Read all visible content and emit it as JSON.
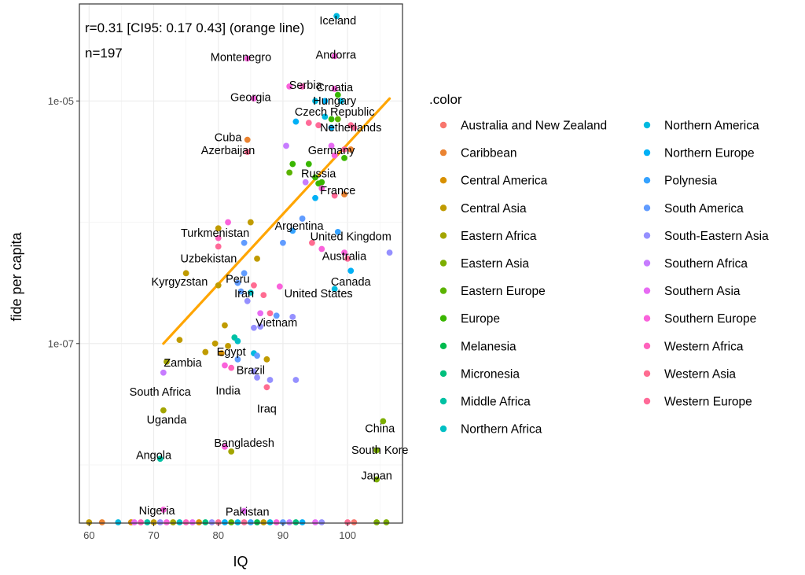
{
  "chart_data": {
    "type": "scatter",
    "annotation_lines": [
      "r=0.31 [CI95: 0.17 0.43] (orange line)",
      "n=197"
    ],
    "xlabel": "IQ",
    "ylabel": "fide per capita",
    "x_ticks": [
      "60",
      "70",
      "80",
      "90",
      "100"
    ],
    "y_ticks": [
      "1e-05",
      "1e-07"
    ],
    "xlim": [
      58.5,
      108.5
    ],
    "y_scale": "log10",
    "ylog_lim": [
      -8.48,
      -4.2
    ],
    "grid": true,
    "legend_title": ".color",
    "legend_position": "right",
    "regions": [
      {
        "name": "Australia and New Zealand",
        "color": "#F8766D"
      },
      {
        "name": "Caribbean",
        "color": "#EA8331"
      },
      {
        "name": "Central America",
        "color": "#D89000"
      },
      {
        "name": "Central Asia",
        "color": "#C09B00"
      },
      {
        "name": "Eastern Africa",
        "color": "#A3A500"
      },
      {
        "name": "Eastern Asia",
        "color": "#7CAE00"
      },
      {
        "name": "Eastern Europe",
        "color": "#5BB300"
      },
      {
        "name": "Europe",
        "color": "#39B600"
      },
      {
        "name": "Melanesia",
        "color": "#00BB4E"
      },
      {
        "name": "Micronesia",
        "color": "#00BF7D"
      },
      {
        "name": "Middle Africa",
        "color": "#00C1A3"
      },
      {
        "name": "Northern Africa",
        "color": "#00BFC4"
      },
      {
        "name": "Northern America",
        "color": "#00BAE0"
      },
      {
        "name": "Northern Europe",
        "color": "#00B0F6"
      },
      {
        "name": "Polynesia",
        "color": "#35A2FF"
      },
      {
        "name": "South America",
        "color": "#619CFF"
      },
      {
        "name": "South-Eastern Asia",
        "color": "#9590FF"
      },
      {
        "name": "Southern Africa",
        "color": "#C77CFF"
      },
      {
        "name": "Southern Asia",
        "color": "#E76BF3"
      },
      {
        "name": "Southern Europe",
        "color": "#FA62DB"
      },
      {
        "name": "Western Africa",
        "color": "#FF62BC"
      },
      {
        "name": "Western Asia",
        "color": "#FF6C91"
      },
      {
        "name": "Western Europe",
        "color": "#FF6A98"
      }
    ],
    "fit_line": {
      "color": "#FFA500",
      "x": [
        71.5,
        106.5
      ],
      "logy": [
        -7.0,
        -4.98
      ]
    },
    "labels": [
      {
        "text": "Iceland",
        "x": 98.5,
        "logy": -4.37
      },
      {
        "text": "Andorra",
        "x": 98.2,
        "logy": -4.65
      },
      {
        "text": "Montenegro",
        "x": 83.5,
        "logy": -4.67
      },
      {
        "text": "Serbia",
        "x": 93.5,
        "logy": -4.9
      },
      {
        "text": "Croatia",
        "x": 98.0,
        "logy": -4.92
      },
      {
        "text": "Hungary",
        "x": 98.0,
        "logy": -5.03
      },
      {
        "text": "Georgia",
        "x": 85.0,
        "logy": -5.0
      },
      {
        "text": "Czech Republic",
        "x": 98.0,
        "logy": -5.12
      },
      {
        "text": "Netherlands",
        "x": 100.5,
        "logy": -5.25
      },
      {
        "text": "Cuba",
        "x": 81.5,
        "logy": -5.33
      },
      {
        "text": "Azerbaijan",
        "x": 81.5,
        "logy": -5.44
      },
      {
        "text": "Germany",
        "x": 97.5,
        "logy": -5.44
      },
      {
        "text": "Russia",
        "x": 95.5,
        "logy": -5.63
      },
      {
        "text": "France",
        "x": 98.5,
        "logy": -5.77
      },
      {
        "text": "Argentina",
        "x": 92.5,
        "logy": -6.06
      },
      {
        "text": "Turkmenistan",
        "x": 79.5,
        "logy": -6.12
      },
      {
        "text": "United Kingdom",
        "x": 100.5,
        "logy": -6.15
      },
      {
        "text": "Australia",
        "x": 99.5,
        "logy": -6.31
      },
      {
        "text": "Uzbekistan",
        "x": 78.5,
        "logy": -6.33
      },
      {
        "text": "Kyrgyzstan",
        "x": 74.0,
        "logy": -6.52
      },
      {
        "text": "Peru",
        "x": 83.0,
        "logy": -6.5
      },
      {
        "text": "Canada",
        "x": 100.5,
        "logy": -6.52
      },
      {
        "text": "Iran",
        "x": 84.0,
        "logy": -6.62
      },
      {
        "text": "United States",
        "x": 95.5,
        "logy": -6.62
      },
      {
        "text": "Vietnam",
        "x": 89.0,
        "logy": -6.86
      },
      {
        "text": "Egypt",
        "x": 82.0,
        "logy": -7.1
      },
      {
        "text": "Zambia",
        "x": 74.5,
        "logy": -7.19
      },
      {
        "text": "Brazil",
        "x": 85.0,
        "logy": -7.25
      },
      {
        "text": "South Africa",
        "x": 71.0,
        "logy": -7.43
      },
      {
        "text": "India",
        "x": 81.5,
        "logy": -7.42
      },
      {
        "text": "Iraq",
        "x": 87.5,
        "logy": -7.57
      },
      {
        "text": "China",
        "x": 105.0,
        "logy": -7.73
      },
      {
        "text": "Uganda",
        "x": 72.0,
        "logy": -7.66
      },
      {
        "text": "Bangladesh",
        "x": 84.0,
        "logy": -7.85
      },
      {
        "text": "South Kore",
        "x": 105.0,
        "logy": -7.91
      },
      {
        "text": "Angola",
        "x": 70.0,
        "logy": -7.95
      },
      {
        "text": "Japan",
        "x": 104.5,
        "logy": -8.12
      },
      {
        "text": "Nigeria",
        "x": 70.5,
        "logy": -8.41
      },
      {
        "text": "Pakistan",
        "x": 84.5,
        "logy": -8.42
      }
    ],
    "points": [
      [
        98.3,
        -4.3,
        12
      ],
      [
        98.0,
        -4.63,
        19
      ],
      [
        84.5,
        -4.65,
        19
      ],
      [
        91.0,
        -4.88,
        19
      ],
      [
        93.0,
        -4.88,
        20
      ],
      [
        98.0,
        -4.9,
        19
      ],
      [
        98.5,
        -4.95,
        7
      ],
      [
        95.0,
        -5.0,
        12
      ],
      [
        96.5,
        -5.0,
        13
      ],
      [
        99.0,
        -5.0,
        12
      ],
      [
        85.5,
        -4.98,
        19
      ],
      [
        96.5,
        -5.13,
        12
      ],
      [
        97.5,
        -5.15,
        7
      ],
      [
        98.5,
        -5.15,
        6
      ],
      [
        92.0,
        -5.17,
        13
      ],
      [
        94.0,
        -5.18,
        22
      ],
      [
        95.5,
        -5.2,
        22
      ],
      [
        97.5,
        -5.22,
        13
      ],
      [
        100.5,
        -5.2,
        21
      ],
      [
        101.0,
        -5.22,
        22
      ],
      [
        84.5,
        -5.32,
        1
      ],
      [
        90.5,
        -5.37,
        17
      ],
      [
        97.5,
        -5.37,
        18
      ],
      [
        99.5,
        -5.4,
        22
      ],
      [
        84.5,
        -5.42,
        21
      ],
      [
        100.5,
        -5.4,
        1
      ],
      [
        98.0,
        -5.45,
        19
      ],
      [
        91.5,
        -5.52,
        7
      ],
      [
        94.0,
        -5.52,
        7
      ],
      [
        99.5,
        -5.47,
        7
      ],
      [
        91.0,
        -5.59,
        6
      ],
      [
        95.0,
        -5.63,
        7
      ],
      [
        95.5,
        -5.68,
        7
      ],
      [
        96.0,
        -5.67,
        7
      ],
      [
        93.5,
        -5.67,
        17
      ],
      [
        96.0,
        -5.72,
        19
      ],
      [
        99.5,
        -5.77,
        1
      ],
      [
        95.0,
        -5.8,
        13
      ],
      [
        98.0,
        -5.78,
        22
      ],
      [
        80.0,
        -6.05,
        3
      ],
      [
        85.0,
        -6.0,
        3
      ],
      [
        81.5,
        -6.0,
        19
      ],
      [
        93.0,
        -5.97,
        15
      ],
      [
        91.5,
        -6.07,
        14
      ],
      [
        98.5,
        -6.08,
        14
      ],
      [
        80.0,
        -6.13,
        20
      ],
      [
        84.0,
        -6.17,
        15
      ],
      [
        90.0,
        -6.17,
        15
      ],
      [
        94.5,
        -6.17,
        21
      ],
      [
        96.0,
        -6.22,
        19
      ],
      [
        99.5,
        -6.25,
        19
      ],
      [
        106.5,
        -6.25,
        16
      ],
      [
        80.0,
        -6.2,
        22
      ],
      [
        86.0,
        -6.3,
        3
      ],
      [
        100.0,
        -6.3,
        22
      ],
      [
        75.0,
        -6.42,
        3
      ],
      [
        84.0,
        -6.42,
        15
      ],
      [
        100.5,
        -6.4,
        13
      ],
      [
        83.0,
        -6.5,
        15
      ],
      [
        85.5,
        -6.52,
        21
      ],
      [
        89.5,
        -6.53,
        19
      ],
      [
        98.0,
        -6.55,
        12
      ],
      [
        80.0,
        -6.52,
        3
      ],
      [
        83.5,
        -6.57,
        15
      ],
      [
        85.0,
        -6.58,
        11
      ],
      [
        87.0,
        -6.6,
        21
      ],
      [
        84.5,
        -6.65,
        16
      ],
      [
        88.0,
        -6.75,
        22
      ],
      [
        86.5,
        -6.75,
        18
      ],
      [
        89.0,
        -6.77,
        15
      ],
      [
        91.5,
        -6.78,
        16
      ],
      [
        85.5,
        -6.87,
        16
      ],
      [
        86.5,
        -6.86,
        16
      ],
      [
        81.0,
        -6.85,
        3
      ],
      [
        82.5,
        -6.95,
        10
      ],
      [
        83.0,
        -6.98,
        11
      ],
      [
        74.0,
        -6.97,
        3
      ],
      [
        79.5,
        -7.0,
        3
      ],
      [
        81.5,
        -7.02,
        3
      ],
      [
        78.0,
        -7.07,
        3
      ],
      [
        80.5,
        -7.08,
        2
      ],
      [
        85.5,
        -7.08,
        12
      ],
      [
        86.0,
        -7.1,
        15
      ],
      [
        83.0,
        -7.13,
        15
      ],
      [
        87.5,
        -7.13,
        3
      ],
      [
        72.0,
        -7.15,
        4
      ],
      [
        81.0,
        -7.18,
        19
      ],
      [
        82.0,
        -7.2,
        20
      ],
      [
        71.5,
        -7.24,
        17
      ],
      [
        85.5,
        -7.23,
        16
      ],
      [
        86.0,
        -7.28,
        16
      ],
      [
        88.0,
        -7.3,
        16
      ],
      [
        92.0,
        -7.3,
        16
      ],
      [
        87.5,
        -7.36,
        21
      ],
      [
        71.5,
        -7.55,
        4
      ],
      [
        105.5,
        -7.64,
        5
      ],
      [
        81.0,
        -7.85,
        19
      ],
      [
        82.0,
        -7.89,
        4
      ],
      [
        104.5,
        -7.88,
        5
      ],
      [
        71.0,
        -7.95,
        10
      ],
      [
        104.5,
        -8.12,
        5
      ],
      [
        71.5,
        -8.37,
        19
      ],
      [
        84.0,
        -8.38,
        18
      ],
      [
        60.0,
        -8.48,
        3
      ],
      [
        62.0,
        -8.48,
        1
      ],
      [
        64.5,
        -8.48,
        12
      ],
      [
        66.5,
        -8.48,
        2
      ],
      [
        67.0,
        -8.48,
        18
      ],
      [
        68.0,
        -8.48,
        20
      ],
      [
        69.0,
        -8.48,
        10
      ],
      [
        70.0,
        -8.48,
        3
      ],
      [
        71.0,
        -8.48,
        16
      ],
      [
        72.0,
        -8.48,
        19
      ],
      [
        73.0,
        -8.48,
        4
      ],
      [
        74.0,
        -8.48,
        11
      ],
      [
        75.0,
        -8.48,
        20
      ],
      [
        76.0,
        -8.48,
        18
      ],
      [
        77.0,
        -8.48,
        2
      ],
      [
        78.0,
        -8.48,
        9
      ],
      [
        79.0,
        -8.48,
        16
      ],
      [
        80.0,
        -8.48,
        21
      ],
      [
        81.0,
        -8.48,
        13
      ],
      [
        82.0,
        -8.48,
        6
      ],
      [
        83.0,
        -8.48,
        12
      ],
      [
        84.0,
        -8.48,
        22
      ],
      [
        85.0,
        -8.48,
        14
      ],
      [
        86.0,
        -8.48,
        8
      ],
      [
        87.0,
        -8.48,
        3
      ],
      [
        88.0,
        -8.48,
        12
      ],
      [
        89.0,
        -8.48,
        19
      ],
      [
        90.0,
        -8.48,
        15
      ],
      [
        91.0,
        -8.48,
        17
      ],
      [
        92.0,
        -8.48,
        9
      ],
      [
        93.0,
        -8.48,
        13
      ],
      [
        95.0,
        -8.48,
        18
      ],
      [
        96.0,
        -8.48,
        16
      ],
      [
        100.0,
        -8.48,
        21
      ],
      [
        101.0,
        -8.48,
        0
      ],
      [
        104.5,
        -8.48,
        5
      ],
      [
        106.0,
        -8.48,
        5
      ]
    ]
  }
}
